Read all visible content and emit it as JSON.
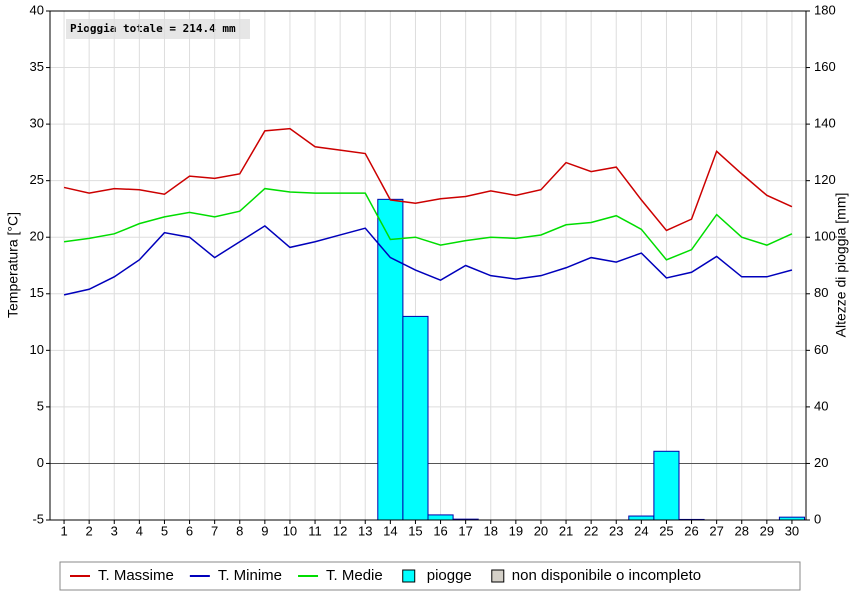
{
  "chart_data": {
    "type": "combo",
    "annotation": "Pioggia totale = 214.4 mm",
    "ylabel": "Temperatura [°C]",
    "y2label": "Altezze di pioggia [mm]",
    "x": [
      1,
      2,
      3,
      4,
      5,
      6,
      7,
      8,
      9,
      10,
      11,
      12,
      13,
      14,
      15,
      16,
      17,
      18,
      19,
      20,
      21,
      22,
      23,
      24,
      25,
      26,
      27,
      28,
      29,
      30
    ],
    "xticks": [
      1,
      2,
      3,
      4,
      5,
      6,
      7,
      8,
      9,
      10,
      11,
      12,
      13,
      14,
      15,
      16,
      17,
      18,
      19,
      20,
      21,
      22,
      23,
      24,
      25,
      26,
      27,
      28,
      29,
      30
    ],
    "xlim": [
      0.44,
      30.56
    ],
    "ylim": [
      -5,
      40
    ],
    "yticks": [
      -5,
      0,
      5,
      10,
      15,
      20,
      25,
      30,
      35,
      40
    ],
    "y2lim": [
      0,
      180
    ],
    "y2ticks": [
      0,
      20,
      40,
      60,
      80,
      100,
      120,
      140,
      160,
      180
    ],
    "grid": true,
    "series": [
      {
        "name": "piogge",
        "type": "bar",
        "axis": "y2",
        "color": "#00ffff",
        "values": [
          0,
          0,
          0,
          0,
          0,
          0,
          0,
          0,
          0,
          0,
          0,
          0,
          0,
          113.4,
          72,
          1.8,
          0.3,
          0,
          0,
          0,
          0,
          0,
          0,
          1.4,
          24.3,
          0.2,
          0,
          0,
          0,
          1.0
        ]
      },
      {
        "name": "T. Massime",
        "type": "line",
        "color": "#cc0000",
        "values": [
          24.4,
          23.9,
          24.3,
          24.2,
          23.8,
          25.4,
          25.2,
          25.6,
          29.4,
          29.6,
          28.0,
          27.7,
          27.4,
          23.3,
          23.0,
          23.4,
          23.6,
          24.1,
          23.7,
          24.2,
          26.6,
          25.8,
          26.2,
          23.3,
          20.6,
          21.6,
          27.6,
          25.6,
          23.7,
          22.7
        ]
      },
      {
        "name": "T. Minime",
        "type": "line",
        "color": "#0000bb",
        "values": [
          14.9,
          15.4,
          16.5,
          18.0,
          20.4,
          20.0,
          18.2,
          19.6,
          21.0,
          19.1,
          19.6,
          20.2,
          20.8,
          18.2,
          17.1,
          16.2,
          17.5,
          16.6,
          16.3,
          16.6,
          17.3,
          18.2,
          17.8,
          18.6,
          16.4,
          16.9,
          18.3,
          16.5,
          16.5,
          17.1
        ]
      },
      {
        "name": "T. Medie",
        "type": "line",
        "color": "#00dd00",
        "values": [
          19.6,
          19.9,
          20.3,
          21.2,
          21.8,
          22.2,
          21.8,
          22.3,
          24.3,
          24.0,
          23.9,
          23.9,
          23.9,
          19.8,
          20.0,
          19.3,
          19.7,
          20.0,
          19.9,
          20.2,
          21.1,
          21.3,
          21.9,
          20.7,
          18.0,
          18.9,
          22.0,
          20.0,
          19.3,
          20.3
        ]
      }
    ],
    "legend_order": [
      1,
      2,
      3,
      0
    ],
    "legend_extra": [
      {
        "name": "non disponibile o incompleto",
        "color": "#d4d0c8"
      }
    ]
  }
}
